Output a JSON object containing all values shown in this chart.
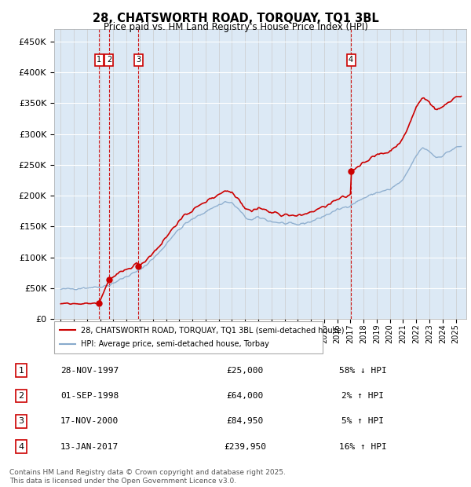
{
  "title": "28, CHATSWORTH ROAD, TORQUAY, TQ1 3BL",
  "subtitle": "Price paid vs. HM Land Registry's House Price Index (HPI)",
  "plot_bg_color": "#dce9f5",
  "legend_label_red": "28, CHATSWORTH ROAD, TORQUAY, TQ1 3BL (semi-detached house)",
  "legend_label_blue": "HPI: Average price, semi-detached house, Torbay",
  "transactions": [
    {
      "label": "1",
      "date_num": 1997.91,
      "price": 25000
    },
    {
      "label": "2",
      "date_num": 1998.67,
      "price": 64000
    },
    {
      "label": "3",
      "date_num": 2000.88,
      "price": 84950
    },
    {
      "label": "4",
      "date_num": 2017.04,
      "price": 239950
    }
  ],
  "table_rows": [
    [
      "1",
      "28-NOV-1997",
      "£25,000",
      "58% ↓ HPI"
    ],
    [
      "2",
      "01-SEP-1998",
      "£64,000",
      "2% ↑ HPI"
    ],
    [
      "3",
      "17-NOV-2000",
      "£84,950",
      "5% ↑ HPI"
    ],
    [
      "4",
      "13-JAN-2017",
      "£239,950",
      "16% ↑ HPI"
    ]
  ],
  "footer": "Contains HM Land Registry data © Crown copyright and database right 2025.\nThis data is licensed under the Open Government Licence v3.0.",
  "red_color": "#cc0000",
  "blue_color": "#88aacc",
  "vline_color": "#cc0000",
  "ylim": [
    0,
    470000
  ],
  "yticks": [
    0,
    50000,
    100000,
    150000,
    200000,
    250000,
    300000,
    350000,
    400000,
    450000
  ],
  "xlim_start": 1994.5,
  "xlim_end": 2025.8
}
